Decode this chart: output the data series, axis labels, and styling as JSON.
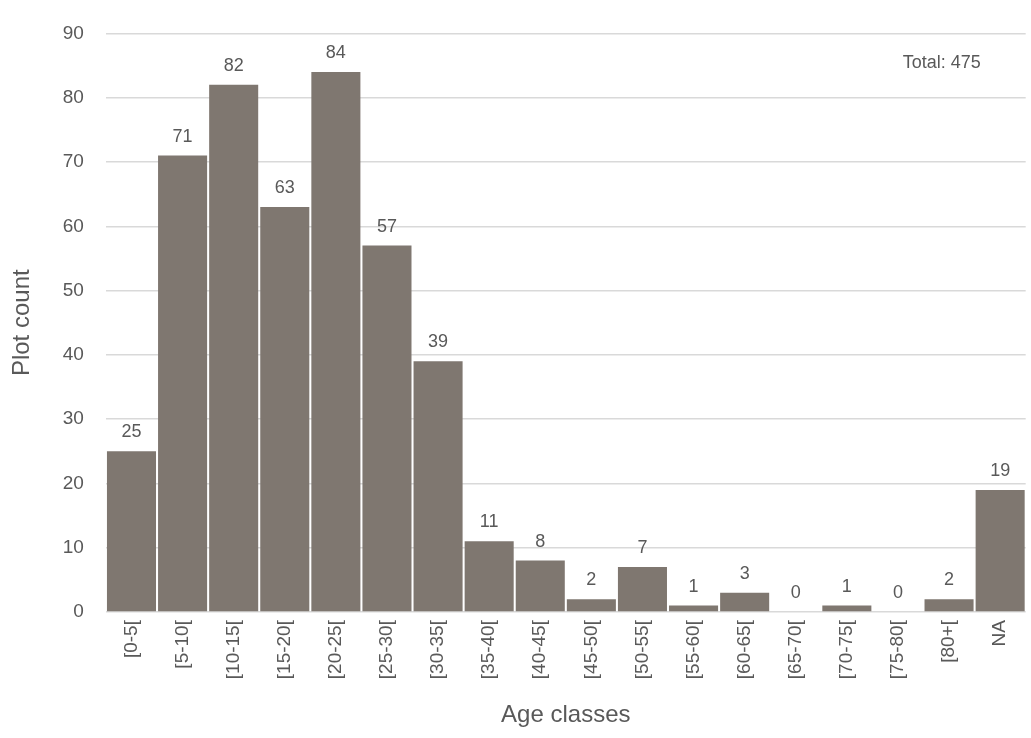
{
  "chart_data": {
    "type": "bar",
    "xlabel": "Age classes",
    "ylabel": "Plot count",
    "categories": [
      "[0-5[",
      "[5-10[",
      "[10-15[",
      "[15-20[",
      "[20-25[",
      "[25-30[",
      "[30-35[",
      "[35-40[",
      "[40-45[",
      "[45-50[",
      "[50-55[",
      "[55-60[",
      "[60-65[",
      "[65-70[",
      "[70-75[",
      "[75-80[",
      "[80+[",
      "NA"
    ],
    "values": [
      25,
      71,
      82,
      63,
      84,
      57,
      39,
      11,
      8,
      2,
      7,
      1,
      3,
      0,
      1,
      0,
      2,
      19
    ],
    "color": "#7f7770",
    "ylim": [
      0,
      90
    ],
    "yticks": [
      0,
      10,
      20,
      30,
      40,
      50,
      60,
      70,
      80,
      90
    ],
    "grid": "y",
    "legend": false,
    "data_labels": true,
    "annotations": [
      "Total: 475"
    ]
  }
}
